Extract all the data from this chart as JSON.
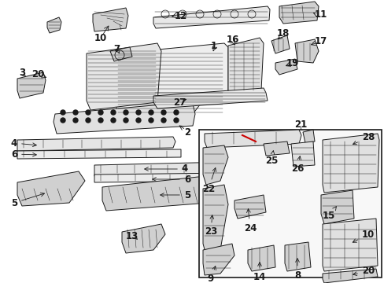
{
  "bg_color": "#ffffff",
  "line_color": "#1a1a1a",
  "fill_color": "#e8e8e8",
  "fill_dark": "#d0d0d0",
  "red_color": "#cc0000",
  "fig_width": 4.89,
  "fig_height": 3.6,
  "dpi": 100
}
